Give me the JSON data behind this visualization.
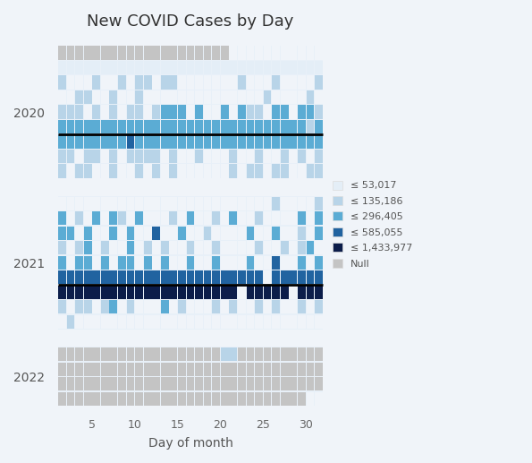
{
  "title": "New COVID Cases by Day",
  "xlabel": "Day of month",
  "background_color": "#f0f4f9",
  "colors": {
    "bin0": "#e4eef7",
    "bin1": "#b8d4e8",
    "bin2": "#5bacd4",
    "bin3": "#2163a0",
    "bin4": "#0c1d4a",
    "null": "#c4c4c4",
    "white": "#f0f4f9",
    "section_bg": "#e8f0f8"
  },
  "legend_labels": [
    "≤ 53,017",
    "≤ 135,186",
    "≤ 296,405",
    "≤ 585,055",
    "≤ 1,433,977",
    "Null"
  ],
  "year_labels": [
    "2020",
    "2021",
    "2022"
  ],
  "days": 31
}
